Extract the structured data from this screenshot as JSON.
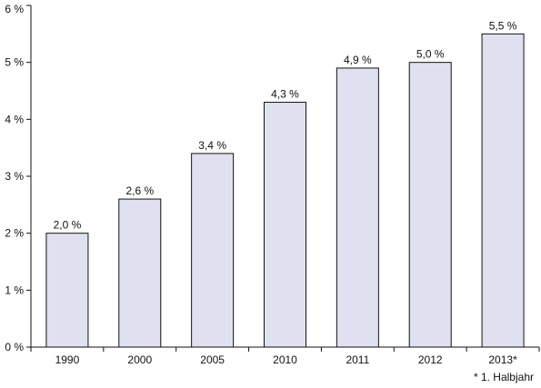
{
  "chart_data": {
    "type": "bar",
    "categories": [
      "1990",
      "2000",
      "2005",
      "2010",
      "2011",
      "2012",
      "2013*"
    ],
    "values": [
      2.0,
      2.6,
      3.4,
      4.3,
      4.9,
      5.0,
      5.5
    ],
    "value_labels": [
      "2,0 %",
      "2,6 %",
      "3,4 %",
      "4,3 %",
      "4,9 %",
      "5,0 %",
      "5,5 %"
    ],
    "y_tick_values": [
      0,
      1,
      2,
      3,
      4,
      5,
      6
    ],
    "y_tick_labels": [
      "0 %",
      "1 %",
      "2 %",
      "3 %",
      "4 %",
      "5 %",
      "6 %"
    ],
    "ylim": [
      0,
      6
    ],
    "title": "",
    "xlabel": "",
    "ylabel": "",
    "grid": false,
    "legend": "none",
    "footnote": "* 1. Halbjahr",
    "colors": {
      "bar_fill": "#e0e1f0",
      "bar_stroke": "#111111",
      "axis": "#111111"
    }
  }
}
